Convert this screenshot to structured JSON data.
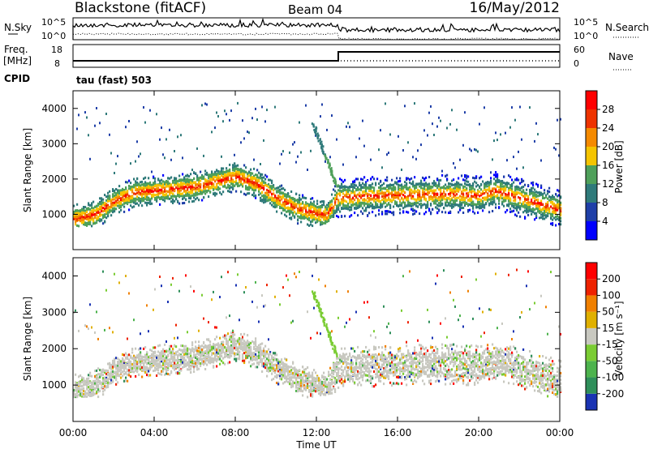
{
  "header": {
    "station": "Blackstone (fitACF)",
    "beam": "Beam 04",
    "date": "16/May/2012"
  },
  "strip": {
    "nsky_label": "N.Sky",
    "nsearch_label": "N.Search",
    "noise_left_ticks": [
      "10^5",
      "10^0"
    ],
    "noise_right_ticks": [
      "10^5",
      "10^0"
    ],
    "freq_label": "Freq.",
    "freq_unit": "[MHz]",
    "freq_ticks": [
      "18",
      "8"
    ],
    "nave_label": "Nave",
    "nave_ticks": [
      "60",
      "0"
    ],
    "cpid_label": "CPID",
    "cpid_value": "tau (fast) 503"
  },
  "chart_data": [
    {
      "type": "heatmap",
      "name": "power",
      "ylabel": "Slant Range [km]",
      "yticks": [
        1000,
        2000,
        3000,
        4000
      ],
      "ylim": [
        0,
        4500
      ],
      "xlim": [
        0,
        24
      ],
      "colorbar": {
        "label": "Power [dB]",
        "ticks": [
          "28",
          "24",
          "20",
          "16",
          "12",
          "8",
          "4"
        ],
        "colors": [
          "#0000ff",
          "#1f3fa8",
          "#2f7a7a",
          "#4fa05a",
          "#f5c400",
          "#f58a00",
          "#ee3300",
          "#ff0000"
        ]
      },
      "main_band_km": [
        {
          "t": 0,
          "range": 900
        },
        {
          "t": 1,
          "range": 1000
        },
        {
          "t": 2,
          "range": 1400
        },
        {
          "t": 3,
          "range": 1650
        },
        {
          "t": 5,
          "range": 1750
        },
        {
          "t": 6,
          "range": 1800
        },
        {
          "t": 7,
          "range": 1950
        },
        {
          "t": 8,
          "range": 2100
        },
        {
          "t": 9,
          "range": 1900
        },
        {
          "t": 10,
          "range": 1500
        },
        {
          "t": 11,
          "range": 1200
        },
        {
          "t": 12,
          "range": 1050
        },
        {
          "t": 12.5,
          "range": 1000
        },
        {
          "t": 13,
          "range": 1500
        },
        {
          "t": 15,
          "range": 1550
        },
        {
          "t": 18,
          "range": 1600
        },
        {
          "t": 19,
          "range": 1600
        },
        {
          "t": 20,
          "range": 1550
        },
        {
          "t": 20.8,
          "range": 1700
        },
        {
          "t": 22,
          "range": 1500
        },
        {
          "t": 24,
          "range": 1150
        }
      ]
    },
    {
      "type": "heatmap",
      "name": "velocity",
      "ylabel": "Slant Range [km]",
      "yticks": [
        1000,
        2000,
        3000,
        4000
      ],
      "ylim": [
        0,
        4500
      ],
      "xlim": [
        0,
        24
      ],
      "xlabel": "Time UT",
      "xticks": [
        "00:00",
        "04:00",
        "08:00",
        "12:00",
        "16:00",
        "20:00",
        "00:00"
      ],
      "colorbar": {
        "label": "Velocity [m s⁻¹]",
        "ticks": [
          "200",
          "100",
          "50",
          "15",
          "-15",
          "-50",
          "-100",
          "-200"
        ],
        "colors": [
          "#1a33b3",
          "#2f8f5a",
          "#4db34d",
          "#7acc33",
          "#c8c8c0",
          "#e0b000",
          "#f08000",
          "#ee2200",
          "#ff0000"
        ]
      }
    }
  ]
}
